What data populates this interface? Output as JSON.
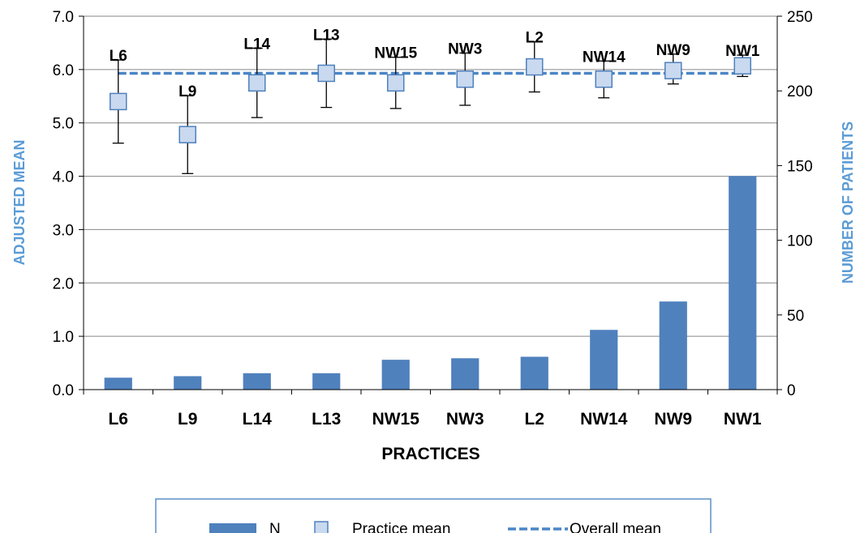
{
  "colors": {
    "bar": "#4f81bd",
    "marker_fill": "#c9d9ef",
    "marker_edge": "#4f81bd",
    "overall_line": "#4a86c6",
    "axis_title": "#5b9bd5",
    "axis_line": "#000000",
    "grid": "#868686"
  },
  "chart_data": {
    "type": "bar",
    "categories": [
      "L6",
      "L9",
      "L14",
      "L13",
      "NW15",
      "NW3",
      "L2",
      "NW14",
      "NW9",
      "NW1"
    ],
    "series": [
      {
        "name": "N",
        "type": "bar",
        "axis": "right",
        "values": [
          8,
          9,
          11,
          11,
          20,
          21,
          22,
          40,
          59,
          143
        ]
      },
      {
        "name": "Practice mean",
        "type": "scatter",
        "axis": "left",
        "values": [
          5.4,
          4.78,
          5.75,
          5.93,
          5.75,
          5.82,
          6.05,
          5.82,
          5.98,
          6.07
        ],
        "error_low": [
          4.62,
          4.05,
          5.1,
          5.29,
          5.27,
          5.33,
          5.58,
          5.47,
          5.73,
          5.87
        ],
        "error_high": [
          6.18,
          5.51,
          6.4,
          6.57,
          6.23,
          6.31,
          6.52,
          6.16,
          6.29,
          6.27
        ]
      },
      {
        "name": "Overall mean",
        "type": "line",
        "axis": "left",
        "value": 5.93
      }
    ],
    "xlabel": "PRACTICES",
    "ylabel": "ADJUSTED MEAN",
    "y2label": "NUMBER OF PATIENTS",
    "ylim": [
      0,
      7
    ],
    "y_ticks": [
      "0.0",
      "1.0",
      "2.0",
      "3.0",
      "4.0",
      "5.0",
      "6.0",
      "7.0"
    ],
    "y2lim": [
      0,
      250
    ],
    "y2_ticks": [
      "0",
      "50",
      "100",
      "150",
      "200",
      "250"
    ],
    "grid": true,
    "legend": {
      "position": "bottom",
      "entries": [
        "N",
        "Practice mean",
        "Overall mean"
      ]
    }
  }
}
